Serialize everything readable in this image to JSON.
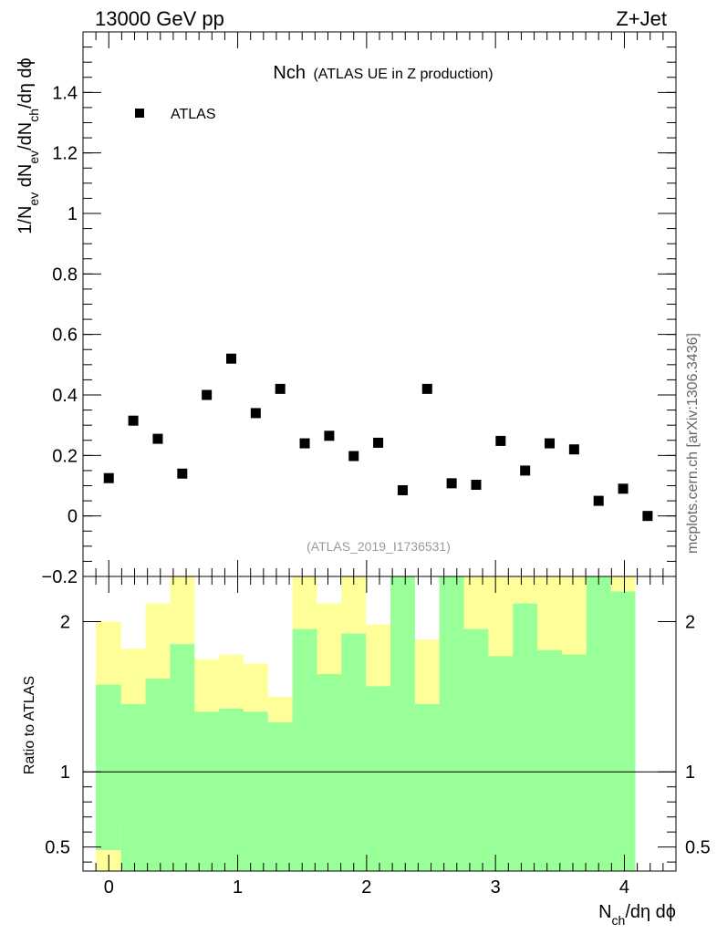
{
  "header": {
    "left": "13000 GeV pp",
    "right": "Z+Jet"
  },
  "side_note": "mcplots.cern.ch [arXiv:1306.3436]",
  "chart_data": [
    {
      "type": "scatter",
      "title_main": "Nch",
      "title_sub": "(ATLAS UE in Z production)",
      "watermark": "(ATLAS_2019_I1736531)",
      "ylabel": {
        "parts": [
          "1/N",
          "ev",
          " dN",
          "ev",
          "/dN",
          "ch",
          "/dη dϕ"
        ]
      },
      "xlim": [
        -0.2,
        4.4
      ],
      "ylim": [
        -0.2,
        1.6
      ],
      "y_ticks": [
        -0.2,
        0,
        0.2,
        0.4,
        0.6,
        0.8,
        1,
        1.2,
        1.4
      ],
      "y_tick_labels": [
        "−0.2",
        "0",
        "0.2",
        "0.4",
        "0.6",
        "0.8",
        "1",
        "1.2",
        "1.4"
      ],
      "legend": {
        "label": "ATLAS",
        "placement": "top-left"
      },
      "series": [
        {
          "name": "ATLAS",
          "x": [
            0.0,
            0.19,
            0.38,
            0.57,
            0.76,
            0.95,
            1.14,
            1.33,
            1.52,
            1.71,
            1.9,
            2.09,
            2.28,
            2.47,
            2.66,
            2.85,
            3.04,
            3.23,
            3.42,
            3.61,
            3.8,
            3.99,
            4.18
          ],
          "y": [
            0.125,
            0.315,
            0.255,
            0.14,
            0.4,
            0.52,
            0.34,
            0.42,
            0.24,
            0.265,
            0.198,
            0.242,
            0.085,
            0.42,
            0.108,
            0.103,
            0.248,
            0.15,
            0.24,
            0.22,
            0.05,
            0.09,
            0.0
          ]
        }
      ]
    },
    {
      "type": "area",
      "ylabel": "Ratio to ATLAS",
      "xlabel": {
        "parts": [
          "N",
          "ch",
          "/dη dϕ"
        ]
      },
      "xlim": [
        -0.2,
        4.4
      ],
      "ylim": [
        0.34,
        2.3
      ],
      "x_ticks": [
        0,
        1,
        2,
        3,
        4
      ],
      "x_tick_labels": [
        "0",
        "1",
        "2",
        "3",
        "4"
      ],
      "y_ticks": [
        0.5,
        1,
        2
      ],
      "y_tick_labels": [
        "0.5",
        "1",
        "2"
      ],
      "reference_line": 1,
      "bin_edges": [
        -0.1,
        0.095,
        0.285,
        0.475,
        0.665,
        0.855,
        1.045,
        1.235,
        1.425,
        1.615,
        1.805,
        1.995,
        2.185,
        2.375,
        2.565,
        2.755,
        2.945,
        3.135,
        3.325,
        3.515,
        3.705,
        3.895,
        4.085
      ],
      "bands": [
        {
          "name": "green",
          "color": "#99ff99",
          "low": [
            0.48,
            0.34,
            0.34,
            0.34,
            0.34,
            0.34,
            0.34,
            0.34,
            0.34,
            0.34,
            0.34,
            0.34,
            0.34,
            0.34,
            0.34,
            0.34,
            0.34,
            0.34,
            0.34,
            0.34,
            0.34,
            0.34
          ],
          "high": [
            1.58,
            1.45,
            1.62,
            1.85,
            1.4,
            1.42,
            1.4,
            1.33,
            1.95,
            1.65,
            1.92,
            1.57,
            2.3,
            1.45,
            2.3,
            1.95,
            1.77,
            2.12,
            1.81,
            1.78,
            2.3,
            2.2
          ]
        },
        {
          "name": "yellow",
          "color": "#ffff99",
          "low": [
            0.34,
            0.65,
            0.42,
            0.34,
            0.7,
            0.68,
            0.71,
            0.78,
            0.34,
            0.38,
            0.34,
            0.53,
            0.34,
            0.66,
            0.34,
            0.34,
            0.34,
            0.34,
            0.34,
            0.34,
            0.34,
            0.34
          ],
          "high": [
            2.0,
            1.82,
            2.12,
            2.3,
            1.75,
            1.78,
            1.72,
            1.5,
            2.3,
            2.12,
            2.3,
            1.98,
            2.3,
            1.88,
            2.3,
            2.3,
            2.3,
            2.3,
            2.3,
            2.3,
            2.3,
            2.3
          ]
        }
      ]
    }
  ]
}
